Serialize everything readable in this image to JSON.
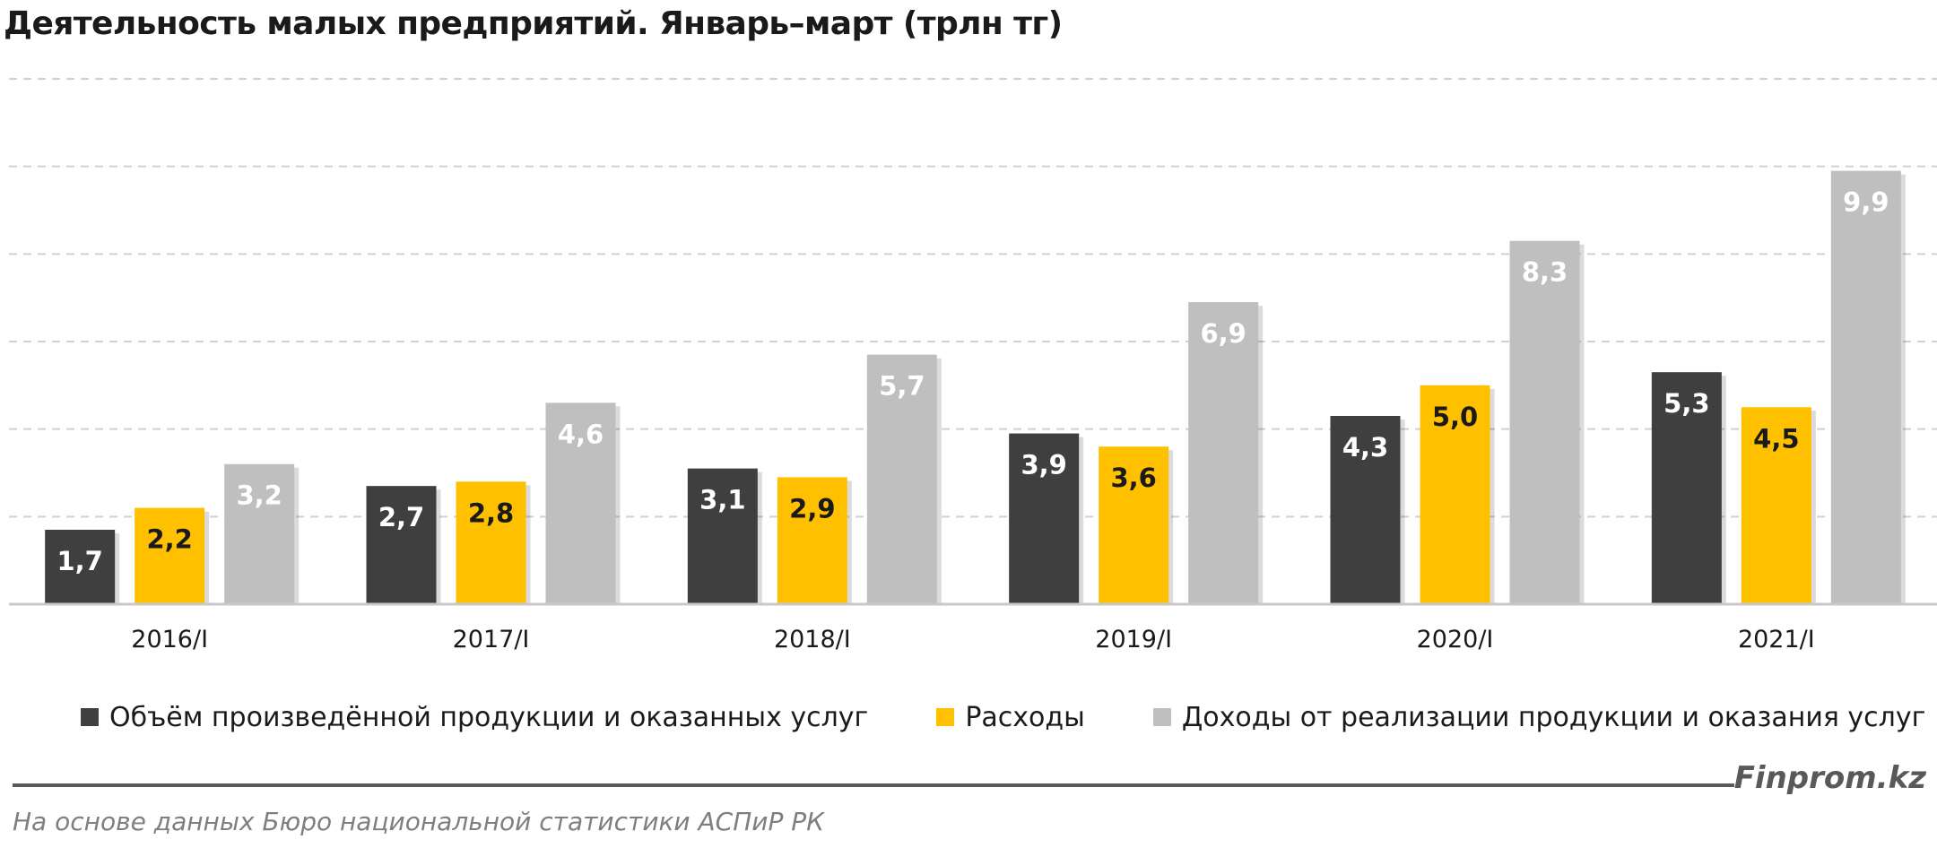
{
  "title": "Деятельность малых предприятий. Январь–март (трлн тг)",
  "colors": {
    "series1": "#3f3f3f",
    "series2": "#ffc000",
    "series3": "#bfbfbf",
    "grid": "#d0d0d0"
  },
  "chart_data": {
    "type": "bar",
    "title": "Деятельность малых предприятий. Январь–март (трлн тг)",
    "categories": [
      "2016/I",
      "2017/I",
      "2018/I",
      "2019/I",
      "2020/I",
      "2021/I"
    ],
    "series": [
      {
        "name": "Объём произведённой продукции и оказанных услуг",
        "values": [
          1.7,
          2.7,
          3.1,
          3.9,
          4.3,
          5.3
        ],
        "labels": [
          "1,7",
          "2,7",
          "3,1",
          "3,9",
          "4,3",
          "5,3"
        ]
      },
      {
        "name": "Расходы",
        "values": [
          2.2,
          2.8,
          2.9,
          3.6,
          5.0,
          4.5
        ],
        "labels": [
          "2,2",
          "2,8",
          "2,9",
          "3,6",
          "5,0",
          "4,5"
        ]
      },
      {
        "name": "Доходы от реализации продукции и оказания услуг",
        "values": [
          3.2,
          4.6,
          5.7,
          6.9,
          8.3,
          9.9
        ],
        "labels": [
          "3,2",
          "4,6",
          "5,7",
          "6,9",
          "8,3",
          "9,9"
        ]
      }
    ],
    "ylim": [
      0,
      12
    ],
    "grid": true,
    "legend": "bottom",
    "xlabel": "",
    "ylabel": ""
  },
  "legend": {
    "items": [
      "Объём произведённой продукции и оказанных услуг",
      "Расходы",
      "Доходы от реализации продукции и оказания услуг"
    ]
  },
  "footer": {
    "brand": "Finprom.kz",
    "source": "На основе данных Бюро национальной статистики АСПиР РК"
  }
}
